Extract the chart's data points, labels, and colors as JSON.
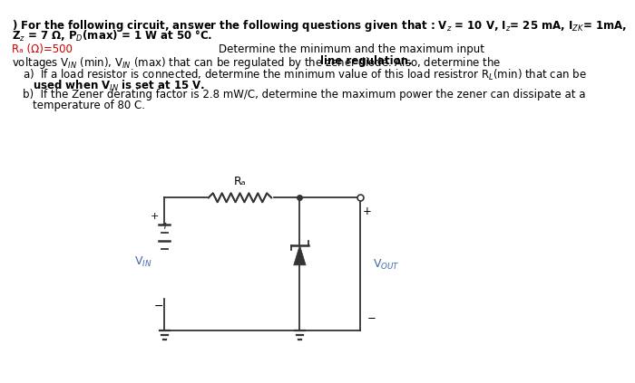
{
  "bg_color": "#ffffff",
  "text_color": "#000000",
  "red_color": "#cc0000",
  "blue_color": "#4169aa",
  "circuit_color": "#333333",
  "fs_main": 8.5,
  "fs_circuit": 9.0,
  "line1": ") For the following circuit, answer the following questions given that : V$_z$ = 10 V, I$_z$= 25 mA, I$_{ZK}$= 1mA,",
  "line2": "Z$_z$ = 7 Ω, P$_D$(max) = 1 W at 50 °C.",
  "ra_red": "Rₐ (Ω)=500",
  "right_line1": "Determine the minimum and the maximum input",
  "voltages_line": "voltages V$_{IN}$ (min), V$_{IN}$ (max) that can be regulated by the zener diode. Also, determine the ",
  "line_reg_bold": "line regulation.",
  "item_a1": "a)  If a load resistor is connected, determine the minimum value of this load resistror R$_L$(min) that can be",
  "item_a2": "used when V$_{IN}$ is set at 15 V.",
  "item_b1": "b)  If the Zener derating factor is 2.8 mW/C, determine the maximum power the zener can dissipate at a",
  "item_b2": "temperature of 80 C.",
  "ra_circuit": "Rₐ",
  "vin_label": "V$_{IN}$",
  "vout_label": "V$_{OUT}$",
  "plus_sign": "+",
  "minus_sign": "−"
}
